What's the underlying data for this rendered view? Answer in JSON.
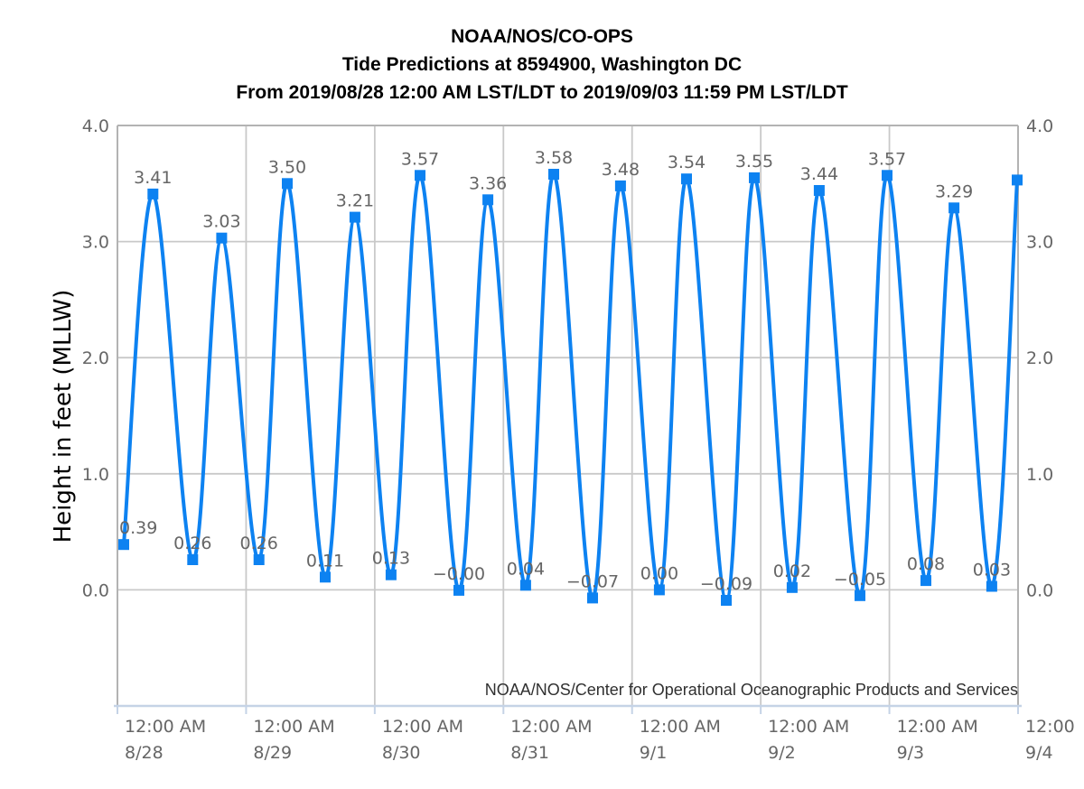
{
  "header": {
    "line1": "NOAA/NOS/CO-OPS",
    "line2": "Tide Predictions at 8594900, Washington DC",
    "line3": "From 2019/08/28 12:00 AM LST/LDT to 2019/09/03 11:59 PM LST/LDT"
  },
  "chart_data": {
    "type": "line",
    "title": "NOAA/NOS/CO-OPS",
    "subtitle": "Tide Predictions at 8594900, Washington DC",
    "range_label": "From 2019/08/28 12:00 AM LST/LDT to 2019/09/03 11:59 PM LST/LDT",
    "ylabel": "Height in feet (MLLW)",
    "attribution": "NOAA/NOS/Center for Operational Oceanographic Products and Services",
    "ylim": [
      -1.0,
      4.0
    ],
    "xlim_days": [
      0,
      7
    ],
    "grid": true,
    "legend": "none",
    "y_ticks": [
      {
        "v": 4.0,
        "label": "4.0"
      },
      {
        "v": 3.0,
        "label": "3.0"
      },
      {
        "v": 2.0,
        "label": "2.0"
      },
      {
        "v": 1.0,
        "label": "1.0"
      },
      {
        "v": 0.0,
        "label": "0.0"
      }
    ],
    "x_ticks": [
      {
        "t": 0,
        "time": "12:00 AM",
        "date": "8/28"
      },
      {
        "t": 1,
        "time": "12:00 AM",
        "date": "8/29"
      },
      {
        "t": 2,
        "time": "12:00 AM",
        "date": "8/30"
      },
      {
        "t": 3,
        "time": "12:00 AM",
        "date": "8/31"
      },
      {
        "t": 4,
        "time": "12:00 AM",
        "date": "9/1"
      },
      {
        "t": 5,
        "time": "12:00 AM",
        "date": "9/2"
      },
      {
        "t": 6,
        "time": "12:00 AM",
        "date": "9/3"
      },
      {
        "t": 7,
        "time": "12:00",
        "date": "9/4"
      }
    ],
    "points": [
      {
        "t": 0.049,
        "v": 0.39,
        "label": "0.39"
      },
      {
        "t": 0.276,
        "v": 3.41,
        "label": "3.41"
      },
      {
        "t": 0.585,
        "v": 0.26,
        "label": "0.26"
      },
      {
        "t": 0.81,
        "v": 3.03,
        "label": "3.03"
      },
      {
        "t": 1.1,
        "v": 0.26,
        "label": "0.26"
      },
      {
        "t": 1.32,
        "v": 3.5,
        "label": "3.50"
      },
      {
        "t": 1.615,
        "v": 0.11,
        "label": "0.11"
      },
      {
        "t": 1.846,
        "v": 3.21,
        "label": "3.21"
      },
      {
        "t": 2.127,
        "v": 0.13,
        "label": "0.13"
      },
      {
        "t": 2.352,
        "v": 3.57,
        "label": "3.57"
      },
      {
        "t": 2.654,
        "v": -0.004,
        "label": "−0.00"
      },
      {
        "t": 2.879,
        "v": 3.36,
        "label": "3.36"
      },
      {
        "t": 3.173,
        "v": 0.04,
        "label": "0.04"
      },
      {
        "t": 3.391,
        "v": 3.58,
        "label": "3.58"
      },
      {
        "t": 3.693,
        "v": -0.07,
        "label": "−0.07"
      },
      {
        "t": 3.91,
        "v": 3.48,
        "label": "3.48"
      },
      {
        "t": 4.212,
        "v": 0.0,
        "label": "0.00"
      },
      {
        "t": 4.423,
        "v": 3.54,
        "label": "3.54"
      },
      {
        "t": 4.732,
        "v": -0.09,
        "label": "−0.09"
      },
      {
        "t": 4.95,
        "v": 3.55,
        "label": "3.55"
      },
      {
        "t": 5.244,
        "v": 0.02,
        "label": "0.02"
      },
      {
        "t": 5.455,
        "v": 3.44,
        "label": "3.44"
      },
      {
        "t": 5.771,
        "v": -0.05,
        "label": "−0.05"
      },
      {
        "t": 5.982,
        "v": 3.57,
        "label": "3.57"
      },
      {
        "t": 6.284,
        "v": 0.08,
        "label": "0.08"
      },
      {
        "t": 6.502,
        "v": 3.29,
        "label": "3.29"
      },
      {
        "t": 6.796,
        "v": 0.03,
        "label": "0.03"
      },
      {
        "t": 6.993,
        "v": 3.53,
        "label": ""
      }
    ],
    "colors": {
      "line": "#0d82f1",
      "marker": "#0d82f1",
      "grid": "#c9c9c9",
      "border": "#b3b3b3",
      "bottom_axis": "#c5d3e6",
      "tick_text": "#666666",
      "point_label_text": "#666666",
      "title_text": "#000000",
      "attribution_text": "#303030"
    }
  }
}
